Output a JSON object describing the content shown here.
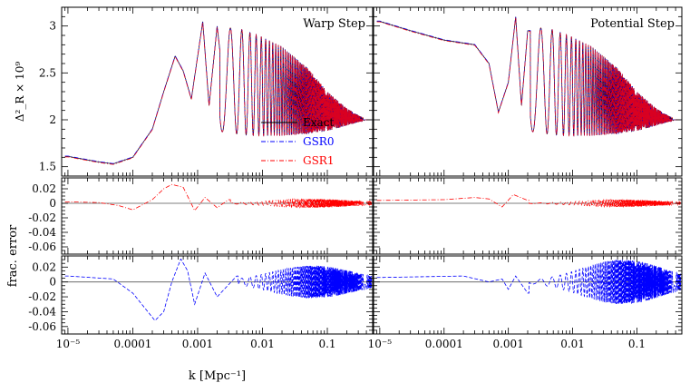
{
  "chart_data": [
    {
      "type": "line",
      "panel": "top-left",
      "title": "Warp Step",
      "ylabel": "Δ²_R × 10⁹",
      "xscale": "log",
      "xlim": [
        8e-06,
        0.5
      ],
      "ylim": [
        1.4,
        3.2
      ],
      "yticks": [
        "1.5",
        "2",
        "2.5",
        "3"
      ],
      "legend": {
        "placement": "inside right",
        "entries": [
          "Exact",
          "GSR0",
          "GSR1"
        ]
      },
      "series": [
        {
          "name": "Exact",
          "color": "#000000",
          "style": "solid",
          "points": [
            [
              1e-05,
              1.61
            ],
            [
              3e-05,
              1.55
            ],
            [
              5e-05,
              1.53
            ],
            [
              0.0001,
              1.6
            ],
            [
              0.0002,
              1.9
            ],
            [
              0.0003,
              2.3
            ],
            [
              0.00045,
              2.68
            ],
            [
              0.0006,
              2.52
            ],
            [
              0.0008,
              2.22
            ],
            [
              0.0012,
              3.05
            ],
            [
              0.0015,
              2.15
            ],
            [
              0.002,
              3.0
            ],
            [
              0.003,
              1.9
            ],
            [
              0.006,
              2.95
            ],
            [
              0.02,
              2.8
            ],
            [
              0.05,
              2.55
            ],
            [
              0.1,
              2.3
            ],
            [
              0.2,
              2.12
            ],
            [
              0.4,
              2.0
            ]
          ],
          "envelope_upper": [
            [
              0.002,
              3.0
            ],
            [
              0.005,
              2.96
            ],
            [
              0.01,
              2.88
            ],
            [
              0.02,
              2.78
            ],
            [
              0.05,
              2.55
            ],
            [
              0.1,
              2.3
            ],
            [
              0.2,
              2.12
            ],
            [
              0.4,
              2.0
            ]
          ],
          "envelope_lower": [
            [
              0.002,
              1.88
            ],
            [
              0.005,
              1.84
            ],
            [
              0.01,
              1.83
            ],
            [
              0.02,
              1.83
            ],
            [
              0.05,
              1.85
            ],
            [
              0.1,
              1.88
            ],
            [
              0.2,
              1.94
            ],
            [
              0.4,
              2.0
            ]
          ]
        },
        {
          "name": "GSR0",
          "color": "#0000ff",
          "style": "dash-dot"
        },
        {
          "name": "GSR1",
          "color": "#ff0000",
          "style": "dash-dot"
        }
      ]
    },
    {
      "type": "line",
      "panel": "top-right",
      "title": "Potential Step",
      "xscale": "log",
      "xlim": [
        8e-06,
        0.5
      ],
      "ylim": [
        1.4,
        3.2
      ],
      "series": [
        {
          "name": "Exact",
          "color": "#000000",
          "style": "solid",
          "points": [
            [
              1e-05,
              3.05
            ],
            [
              3e-05,
              2.95
            ],
            [
              0.0001,
              2.85
            ],
            [
              0.0003,
              2.8
            ],
            [
              0.0005,
              2.6
            ],
            [
              0.0007,
              2.08
            ],
            [
              0.001,
              2.4
            ],
            [
              0.0013,
              3.1
            ],
            [
              0.0016,
              2.15
            ],
            [
              0.002,
              2.95
            ],
            [
              0.005,
              2.93
            ],
            [
              0.01,
              2.88
            ],
            [
              0.02,
              2.78
            ],
            [
              0.05,
              2.55
            ],
            [
              0.1,
              2.3
            ],
            [
              0.2,
              2.12
            ],
            [
              0.4,
              2.0
            ]
          ]
        },
        {
          "name": "GSR0",
          "color": "#0000ff",
          "style": "dash-dot"
        },
        {
          "name": "GSR1",
          "color": "#ff0000",
          "style": "dash-dot"
        }
      ]
    },
    {
      "type": "line",
      "panel": "middle",
      "ylabel": "frac. error",
      "xscale": "log",
      "xlim": [
        8e-06,
        0.5
      ],
      "ylim": [
        -0.07,
        0.035
      ],
      "yticks": [
        "0.02",
        "0",
        "-0.02",
        "-0.04",
        "-0.06"
      ],
      "series": [
        {
          "name": "GSR1 (Warp Step)",
          "color": "#ff0000",
          "style": "dash-dot",
          "points": [
            [
              1e-05,
              0.002
            ],
            [
              3e-05,
              0.001
            ],
            [
              6e-05,
              -0.003
            ],
            [
              0.0001,
              -0.009
            ],
            [
              0.0002,
              0.005
            ],
            [
              0.0003,
              0.02
            ],
            [
              0.0004,
              0.026
            ],
            [
              0.0006,
              0.022
            ],
            [
              0.0009,
              -0.01
            ],
            [
              0.0013,
              0.008
            ],
            [
              0.002,
              -0.006
            ],
            [
              0.003,
              0.005
            ]
          ],
          "oscillation_amplitude_peak": 0.006
        },
        {
          "name": "GSR1 (Potential Step)",
          "color": "#ff0000",
          "style": "dash-dot",
          "points": [
            [
              1e-05,
              0.004
            ],
            [
              0.0001,
              0.005
            ],
            [
              0.0003,
              0.008
            ],
            [
              0.0005,
              0.006
            ],
            [
              0.0008,
              -0.005
            ],
            [
              0.0012,
              0.012
            ],
            [
              0.002,
              0.004
            ]
          ],
          "oscillation_amplitude_peak": 0.005
        }
      ]
    },
    {
      "type": "line",
      "panel": "bottom",
      "xlabel": "k [Mpc⁻¹]",
      "xscale": "log",
      "xlim": [
        8e-06,
        0.5
      ],
      "xticks": [
        "10⁻⁵",
        "0.0001",
        "0.001",
        "0.01",
        "0.1"
      ],
      "ylim": [
        -0.07,
        0.035
      ],
      "yticks": [
        "0.02",
        "0",
        "-0.02",
        "-0.04",
        "-0.06"
      ],
      "series": [
        {
          "name": "GSR0 (Warp Step)",
          "color": "#0000ff",
          "style": "dashed",
          "points": [
            [
              1e-05,
              0.008
            ],
            [
              5e-05,
              0.004
            ],
            [
              0.0001,
              -0.015
            ],
            [
              0.00022,
              -0.052
            ],
            [
              0.0003,
              -0.04
            ],
            [
              0.0004,
              0.0
            ],
            [
              0.00055,
              0.031
            ],
            [
              0.0007,
              0.015
            ],
            [
              0.0009,
              -0.03
            ],
            [
              0.0013,
              0.012
            ],
            [
              0.002,
              -0.02
            ],
            [
              0.004,
              0.008
            ]
          ],
          "oscillation_amplitude_peak": 0.022
        },
        {
          "name": "GSR0 (Potential Step)",
          "color": "#0000ff",
          "style": "dashed",
          "points": [
            [
              1e-05,
              0.006
            ],
            [
              0.0002,
              0.008
            ],
            [
              0.0005,
              0.0
            ],
            [
              0.0008,
              0.004
            ],
            [
              0.001,
              -0.01
            ],
            [
              0.0013,
              0.008
            ],
            [
              0.002,
              -0.015
            ]
          ],
          "oscillation_amplitude_peak": 0.03
        }
      ]
    }
  ]
}
